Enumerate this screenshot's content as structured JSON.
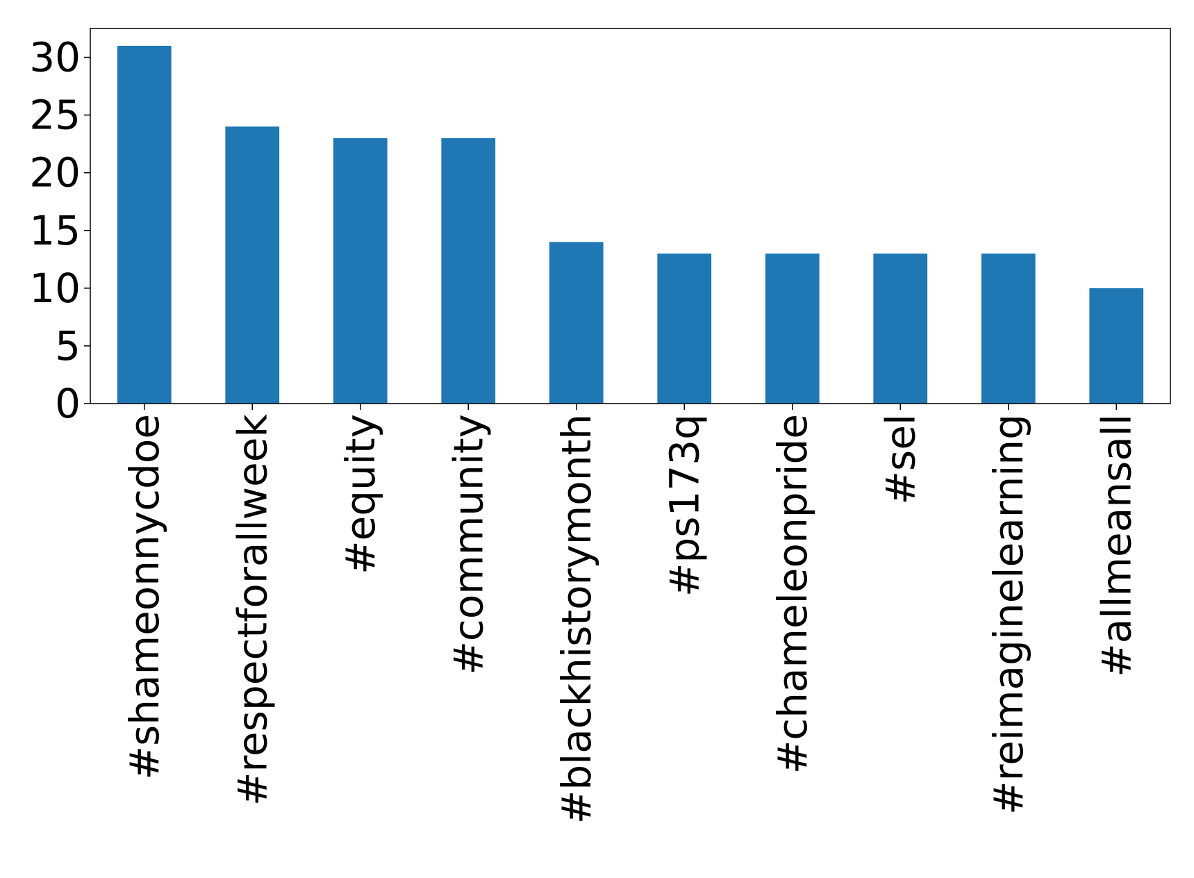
{
  "chart_data": {
    "type": "bar",
    "title": "",
    "xlabel": "",
    "ylabel": "",
    "categories": [
      "#shameonnycdoe",
      "#respectforallweek",
      "#equity",
      "#community",
      "#blackhistorymonth",
      "#ps173q",
      "#chameleonpride",
      "#sel",
      "#reimaginelearning",
      "#allmeansall"
    ],
    "values": [
      31,
      24,
      23,
      23,
      14,
      13,
      13,
      13,
      13,
      10
    ],
    "ylim": [
      0,
      32.5
    ],
    "yticks": [
      0,
      5,
      10,
      15,
      20,
      25,
      30
    ],
    "grid": false,
    "bar_color": "#1f77b4"
  }
}
